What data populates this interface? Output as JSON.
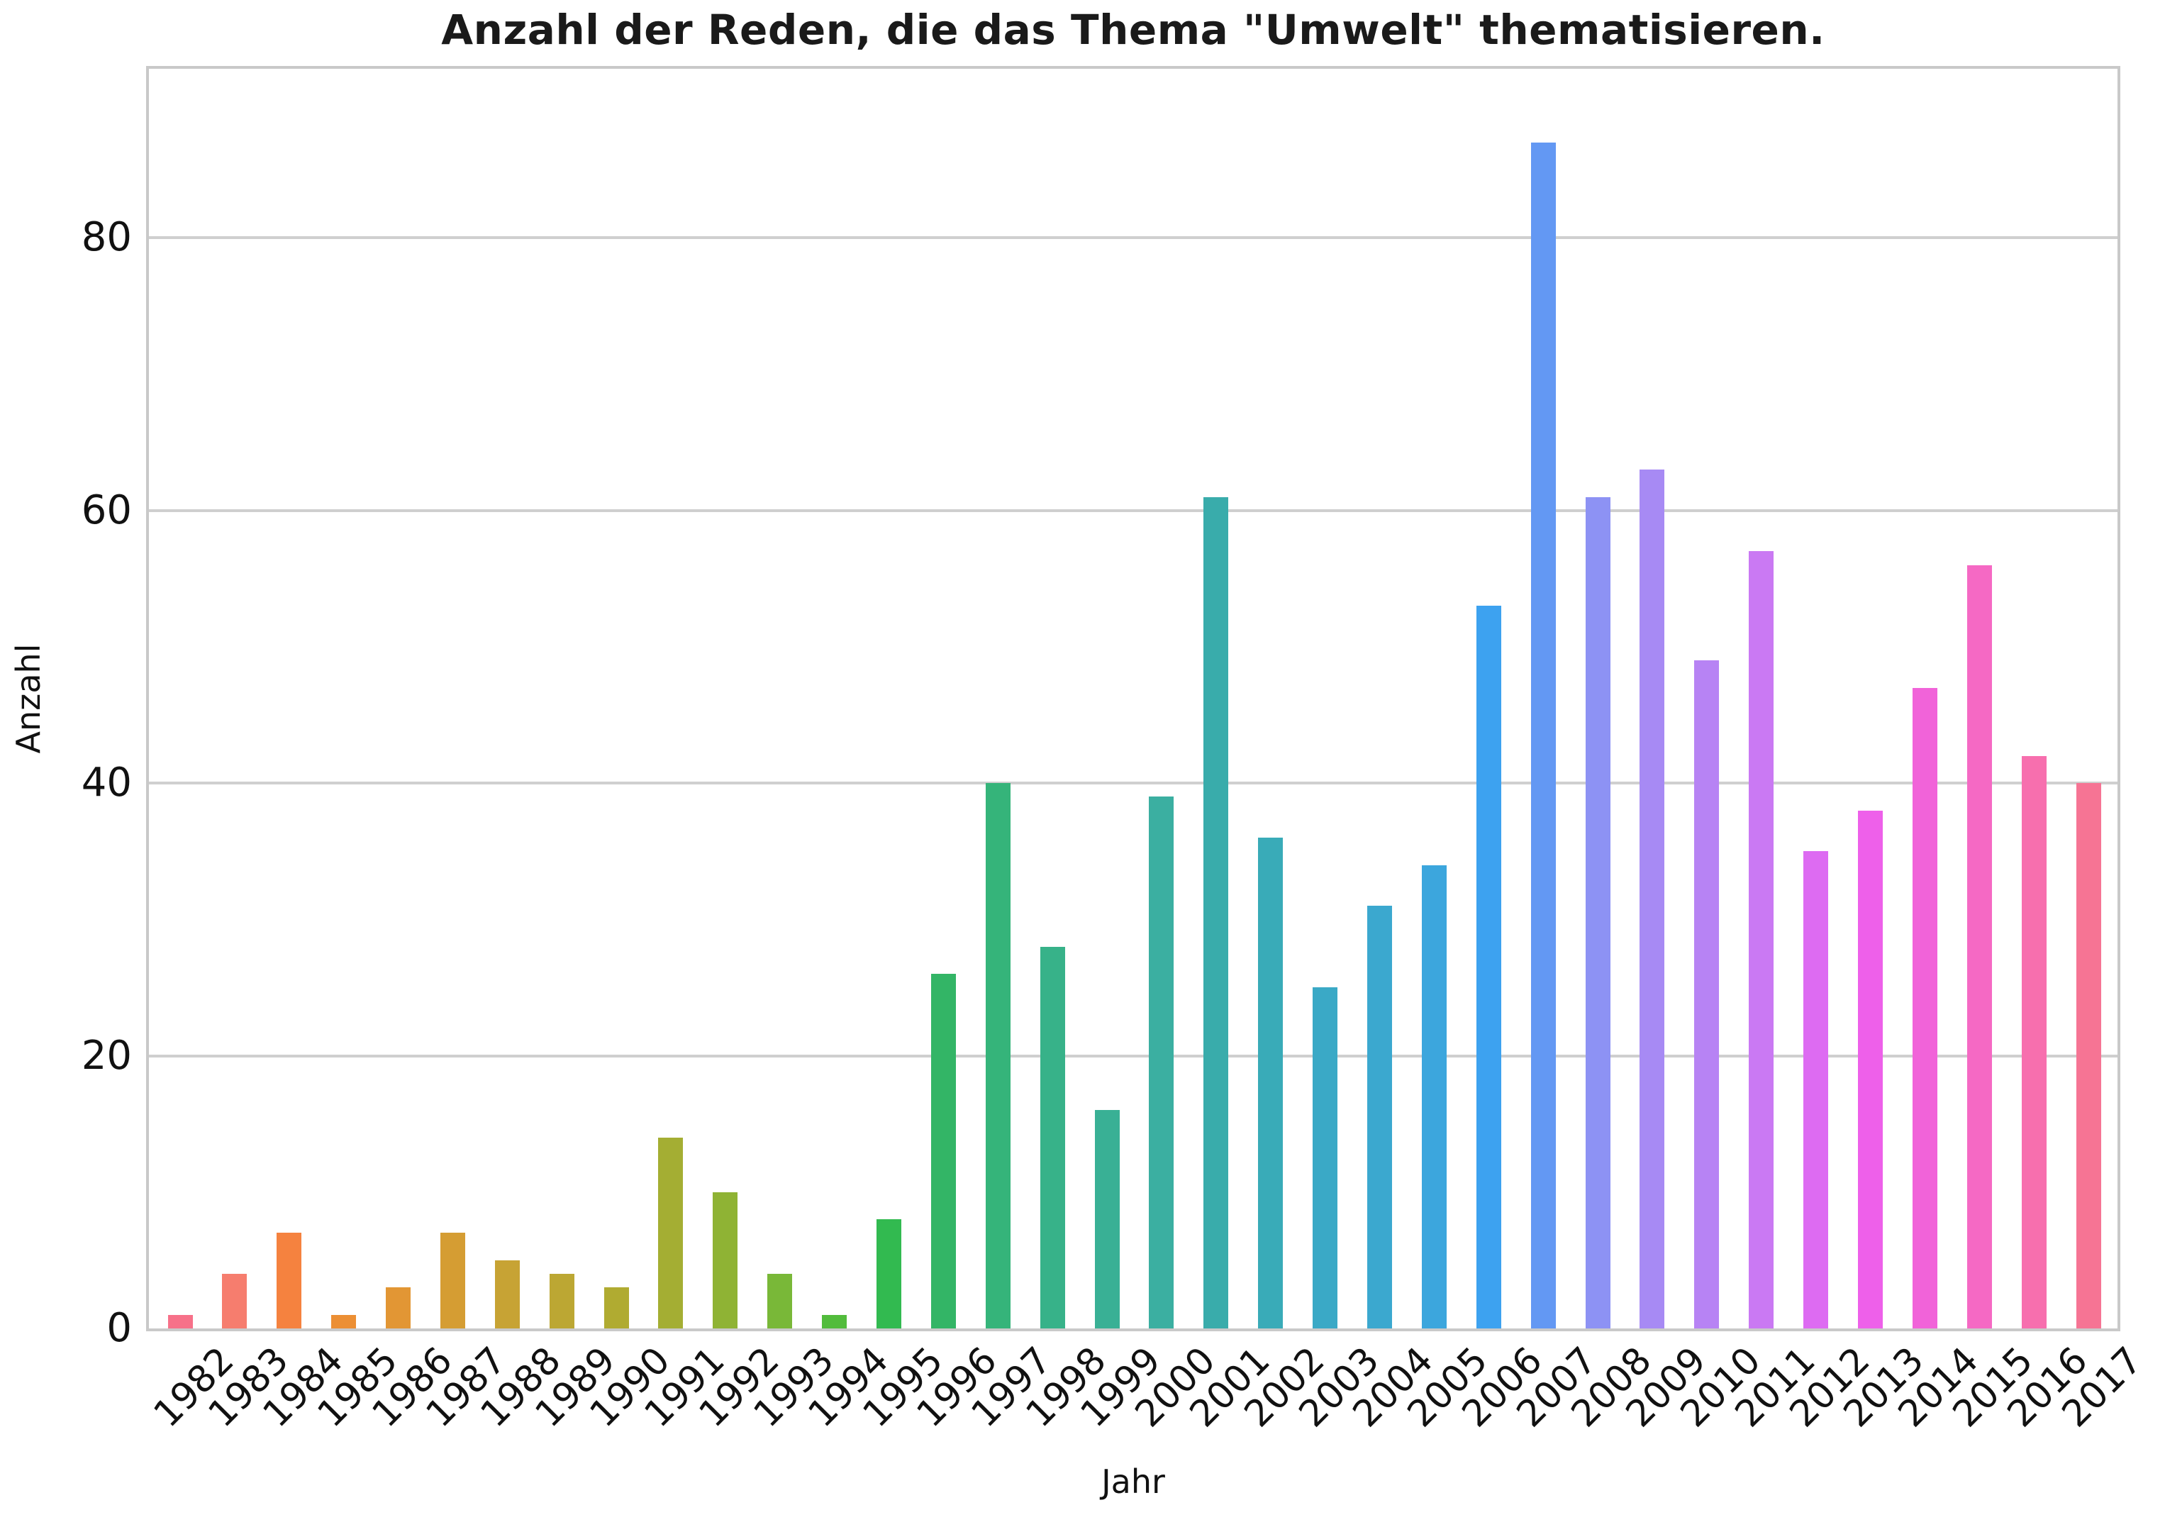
{
  "chart_data": {
    "type": "bar",
    "title": "Anzahl der Reden, die das Thema \"Umwelt\" thematisieren.",
    "xlabel": "Jahr",
    "ylabel": "Anzahl",
    "categories": [
      "1982",
      "1983",
      "1984",
      "1985",
      "1986",
      "1987",
      "1988",
      "1989",
      "1990",
      "1991",
      "1992",
      "1993",
      "1994",
      "1995",
      "1996",
      "1997",
      "1998",
      "1999",
      "2000",
      "2001",
      "2002",
      "2003",
      "2004",
      "2005",
      "2006",
      "2007",
      "2008",
      "2009",
      "2010",
      "2011",
      "2012",
      "2013",
      "2014",
      "2015",
      "2016",
      "2017"
    ],
    "values": [
      1,
      4,
      7,
      1,
      3,
      7,
      5,
      4,
      3,
      14,
      10,
      4,
      1,
      8,
      26,
      40,
      28,
      16,
      39,
      61,
      36,
      25,
      31,
      34,
      53,
      87,
      61,
      63,
      49,
      57,
      35,
      38,
      47,
      56,
      42,
      40
    ],
    "bar_colors": [
      "#f77189",
      "#f67d6e",
      "#f5823f",
      "#ec8f34",
      "#e29634",
      "#d59d33",
      "#c7a334",
      "#bca733",
      "#b0ab31",
      "#a4ae33",
      "#8fb334",
      "#79b838",
      "#52bc3c",
      "#32ba50",
      "#33b566",
      "#35b47a",
      "#37b289",
      "#39b095",
      "#3bafa1",
      "#39acab",
      "#39abb8",
      "#3aa9c6",
      "#3ba8cf",
      "#3ca6dd",
      "#3da2f0",
      "#6398f3",
      "#8d92f4",
      "#a78af4",
      "#b783f4",
      "#ca79f3",
      "#dd6bf2",
      "#ee60ea",
      "#f163d9",
      "#f569c4",
      "#f76fae",
      "#f67494"
    ],
    "yticks": [
      0,
      20,
      40,
      60,
      80
    ],
    "ylim": [
      0,
      92.4
    ],
    "grid": true,
    "legend_position": "none",
    "background_color": "#ffffff",
    "grid_color": "#cfcfcf",
    "spine_color": "#c9c9c9",
    "text_color": "#111111",
    "tick_rotation_deg": 45
  }
}
